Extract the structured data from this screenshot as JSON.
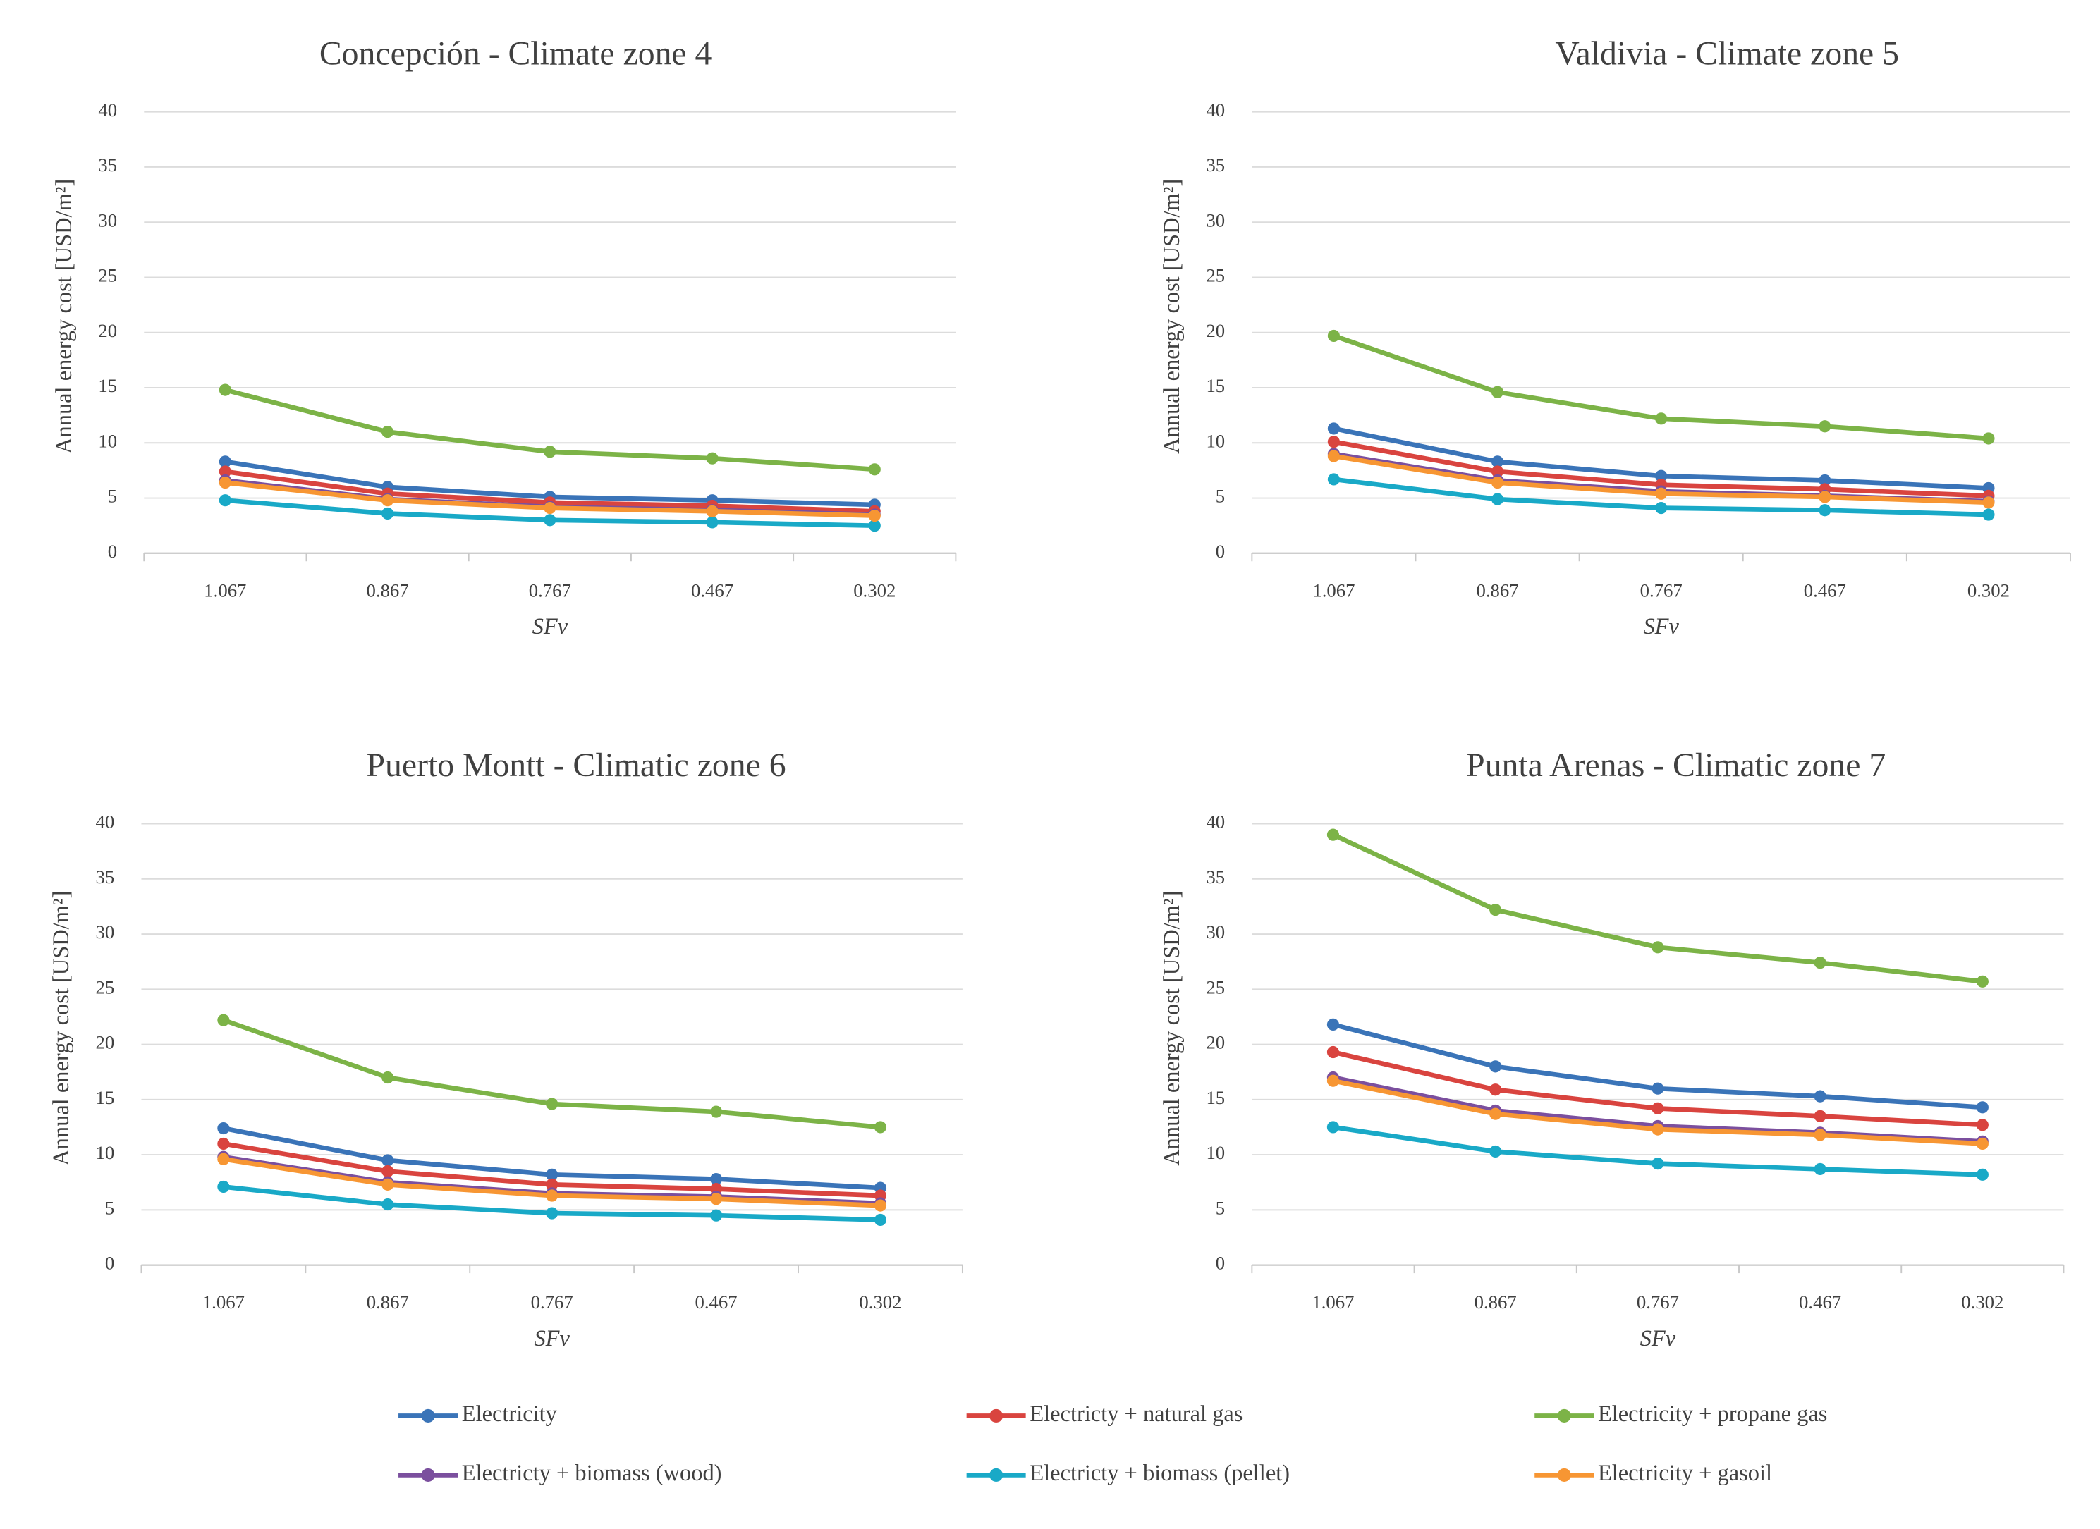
{
  "chart_data": [
    {
      "type": "line",
      "title": "Concepción - Climate zone 4",
      "x_label": "SFv",
      "y_label": "Annual energy cost [USD/m²]",
      "categories": [
        "1.067",
        "0.867",
        "0.767",
        "0.467",
        "0.302"
      ],
      "ylim": [
        0,
        40
      ],
      "yticks": [
        0,
        5,
        10,
        15,
        20,
        25,
        30,
        35,
        40
      ],
      "grid": true,
      "series": [
        {
          "name": "Electricity",
          "color": "#3a74b8",
          "values": [
            8.3,
            6.0,
            5.1,
            4.8,
            4.4
          ]
        },
        {
          "name": "Electricty + natural gas",
          "color": "#d9443f",
          "values": [
            7.4,
            5.4,
            4.6,
            4.3,
            3.8
          ]
        },
        {
          "name": "Electricity + propane gas",
          "color": "#7cb347",
          "values": [
            14.8,
            11.0,
            9.2,
            8.6,
            7.6
          ]
        },
        {
          "name": "Electricty + biomass (wood)",
          "color": "#7b4f9e",
          "values": [
            6.6,
            4.9,
            4.2,
            3.9,
            3.5
          ]
        },
        {
          "name": "Electricty + biomass (pellet)",
          "color": "#19a9c7",
          "values": [
            4.8,
            3.6,
            3.0,
            2.8,
            2.5
          ]
        },
        {
          "name": "Electricity + gasoil",
          "color": "#f79633",
          "values": [
            6.4,
            4.8,
            4.1,
            3.8,
            3.4
          ]
        }
      ]
    },
    {
      "type": "line",
      "title": "Valdivia - Climate zone 5",
      "x_label": "SFv",
      "y_label": "Annual energy cost [USD/m²]",
      "categories": [
        "1.067",
        "0.867",
        "0.767",
        "0.467",
        "0.302"
      ],
      "ylim": [
        0,
        40
      ],
      "yticks": [
        0,
        5,
        10,
        15,
        20,
        25,
        30,
        35,
        40
      ],
      "grid": true,
      "series": [
        {
          "name": "Electricity",
          "color": "#3a74b8",
          "values": [
            11.3,
            8.3,
            7.0,
            6.6,
            5.9
          ]
        },
        {
          "name": "Electricty + natural gas",
          "color": "#d9443f",
          "values": [
            10.1,
            7.4,
            6.2,
            5.8,
            5.2
          ]
        },
        {
          "name": "Electricity + propane gas",
          "color": "#7cb347",
          "values": [
            19.7,
            14.6,
            12.2,
            11.5,
            10.4
          ]
        },
        {
          "name": "Electricty + biomass (wood)",
          "color": "#7b4f9e",
          "values": [
            9.0,
            6.6,
            5.6,
            5.2,
            4.7
          ]
        },
        {
          "name": "Electricty + biomass (pellet)",
          "color": "#19a9c7",
          "values": [
            6.7,
            4.9,
            4.1,
            3.9,
            3.5
          ]
        },
        {
          "name": "Electricity + gasoil",
          "color": "#f79633",
          "values": [
            8.8,
            6.4,
            5.4,
            5.1,
            4.6
          ]
        }
      ]
    },
    {
      "type": "line",
      "title": "Puerto Montt - Climatic zone 6",
      "x_label": "SFv",
      "y_label": "Annual energy cost [USD/m²]",
      "categories": [
        "1.067",
        "0.867",
        "0.767",
        "0.467",
        "0.302"
      ],
      "ylim": [
        0,
        40
      ],
      "yticks": [
        0,
        5,
        10,
        15,
        20,
        25,
        30,
        35,
        40
      ],
      "grid": true,
      "series": [
        {
          "name": "Electricity",
          "color": "#3a74b8",
          "values": [
            12.4,
            9.5,
            8.2,
            7.8,
            7.0
          ]
        },
        {
          "name": "Electricty + natural gas",
          "color": "#d9443f",
          "values": [
            11.0,
            8.5,
            7.3,
            6.9,
            6.3
          ]
        },
        {
          "name": "Electricity + propane gas",
          "color": "#7cb347",
          "values": [
            22.2,
            17.0,
            14.6,
            13.9,
            12.5
          ]
        },
        {
          "name": "Electricty + biomass (wood)",
          "color": "#7b4f9e",
          "values": [
            9.8,
            7.5,
            6.5,
            6.2,
            5.6
          ]
        },
        {
          "name": "Electricty + biomass (pellet)",
          "color": "#19a9c7",
          "values": [
            7.1,
            5.5,
            4.7,
            4.5,
            4.1
          ]
        },
        {
          "name": "Electricity + gasoil",
          "color": "#f79633",
          "values": [
            9.6,
            7.3,
            6.3,
            6.0,
            5.4
          ]
        }
      ]
    },
    {
      "type": "line",
      "title": "Punta Arenas - Climatic zone 7",
      "x_label": "SFv",
      "y_label": "Annual energy cost [USD/m²]",
      "categories": [
        "1.067",
        "0.867",
        "0.767",
        "0.467",
        "0.302"
      ],
      "ylim": [
        0,
        40
      ],
      "yticks": [
        0,
        5,
        10,
        15,
        20,
        25,
        30,
        35,
        40
      ],
      "grid": true,
      "series": [
        {
          "name": "Electricity",
          "color": "#3a74b8",
          "values": [
            21.8,
            18.0,
            16.0,
            15.3,
            14.3
          ]
        },
        {
          "name": "Electricty + natural gas",
          "color": "#d9443f",
          "values": [
            19.3,
            15.9,
            14.2,
            13.5,
            12.7
          ]
        },
        {
          "name": "Electricity + propane gas",
          "color": "#7cb347",
          "values": [
            39.0,
            32.2,
            28.8,
            27.4,
            25.7
          ]
        },
        {
          "name": "Electricty + biomass (wood)",
          "color": "#7b4f9e",
          "values": [
            17.0,
            14.0,
            12.6,
            12.0,
            11.2
          ]
        },
        {
          "name": "Electricty + biomass (pellet)",
          "color": "#19a9c7",
          "values": [
            12.5,
            10.3,
            9.2,
            8.7,
            8.2
          ]
        },
        {
          "name": "Electricity + gasoil",
          "color": "#f79633",
          "values": [
            16.7,
            13.7,
            12.3,
            11.8,
            11.0
          ]
        }
      ]
    }
  ]
}
